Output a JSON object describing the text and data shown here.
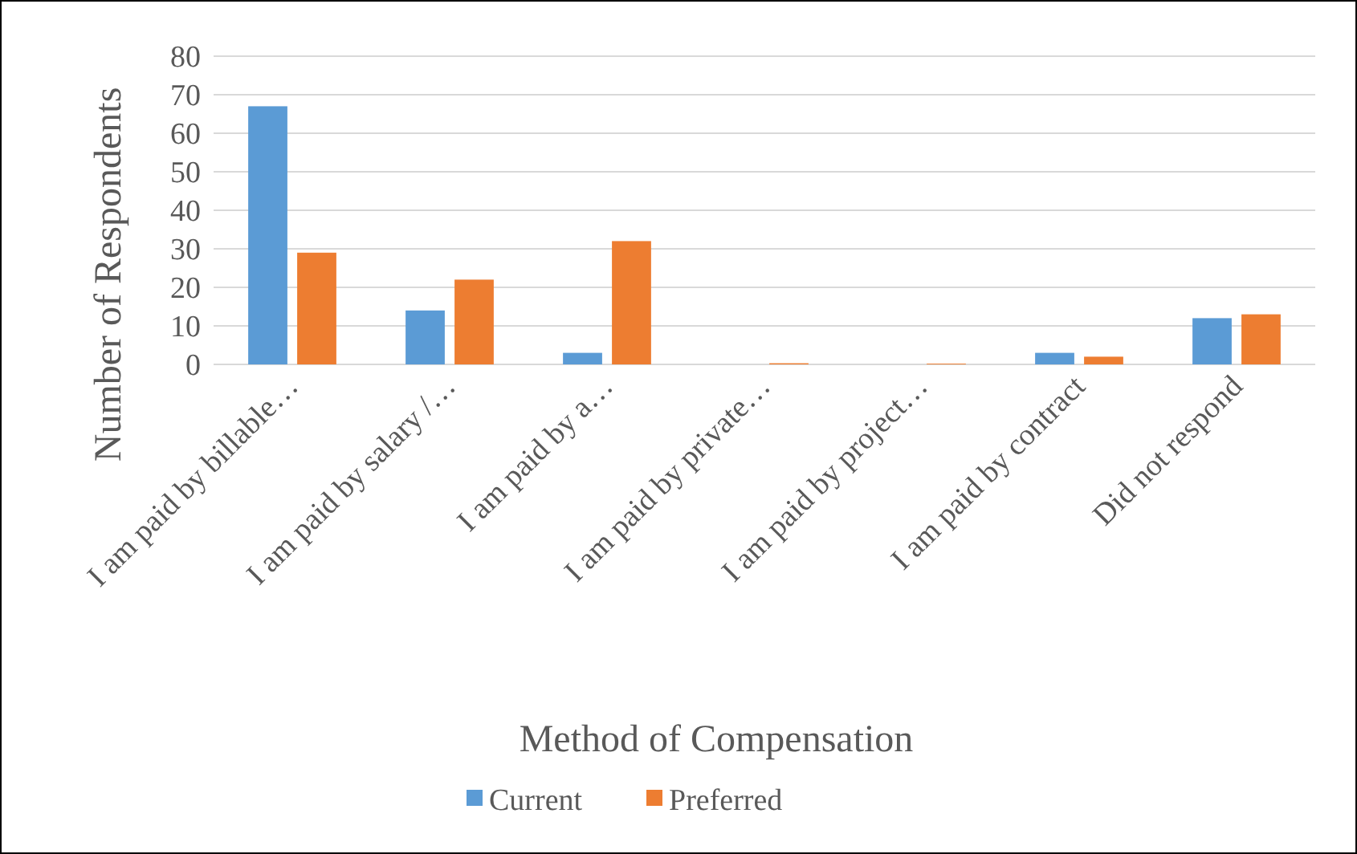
{
  "chart_data": {
    "type": "bar",
    "xlabel": "Method of Compensation",
    "ylabel": "Number of Respondents",
    "categories": [
      "I am paid by billable…",
      "I am paid by salary /…",
      "I am paid by a…",
      "I am paid by private…",
      "I am paid by project…",
      "I am paid by contract",
      "Did not respond"
    ],
    "series": [
      {
        "name": "Current",
        "color": "#5b9bd5",
        "values": [
          67,
          14,
          3,
          0,
          0,
          3,
          12
        ]
      },
      {
        "name": "Preferred",
        "color": "#ed7d31",
        "values": [
          29,
          22,
          32,
          0.3,
          0.2,
          2,
          13
        ]
      }
    ],
    "ylim": [
      0,
      80
    ],
    "yticks": [
      0,
      10,
      20,
      30,
      40,
      50,
      60,
      70,
      80
    ],
    "grid": "y",
    "legend": "bottom"
  }
}
